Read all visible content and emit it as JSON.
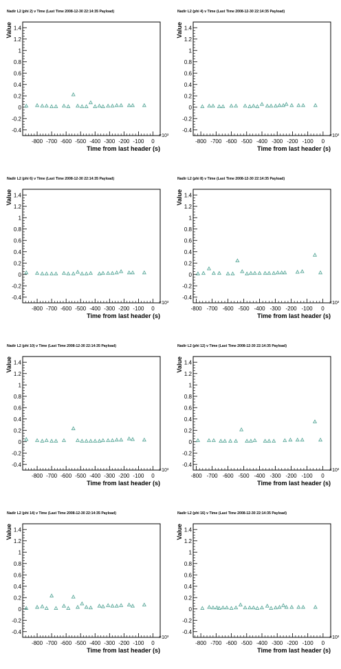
{
  "chart_data": [
    {
      "type": "scatter",
      "title": "Nadir L2 (phi 2) v Time (Last Time 2008-12-30 22:14:35 Payload)",
      "xlabel": "Time from last header (s)",
      "ylabel": "Value",
      "x_multiplier_label": "×10³",
      "xlim": [
        -0.9,
        0.05
      ],
      "ylim": [
        -0.5,
        1.5
      ],
      "x_ticks": [
        -0.8,
        -0.7,
        -0.6,
        -0.5,
        -0.4,
        -0.3,
        -0.2,
        -0.1,
        0
      ],
      "x_tick_labels": [
        "-800",
        "-700",
        "-600",
        "-500",
        "-400",
        "-300",
        "-200",
        "-100",
        "0"
      ],
      "y_ticks": [
        -0.4,
        -0.2,
        0,
        0.2,
        0.4,
        0.6,
        0.8,
        1,
        1.2,
        1.4
      ],
      "y_tick_labels": [
        "-0.4",
        "-0.2",
        "0",
        "0.2",
        "0.4",
        "0.6",
        "0.8",
        "1",
        "1.2",
        "1.4"
      ],
      "marker_color": "#5aa89a",
      "points": [
        [
          -0.875,
          0.02
        ],
        [
          -0.8,
          0.03
        ],
        [
          -0.765,
          0.02
        ],
        [
          -0.735,
          0.02
        ],
        [
          -0.7,
          0.01
        ],
        [
          -0.67,
          0.01
        ],
        [
          -0.615,
          0.02
        ],
        [
          -0.585,
          0.01
        ],
        [
          -0.55,
          0.22
        ],
        [
          -0.52,
          0.02
        ],
        [
          -0.49,
          0.01
        ],
        [
          -0.46,
          0.01
        ],
        [
          -0.43,
          0.08
        ],
        [
          -0.4,
          0.01
        ],
        [
          -0.37,
          0.02
        ],
        [
          -0.345,
          0.01
        ],
        [
          -0.31,
          0.02
        ],
        [
          -0.28,
          0.02
        ],
        [
          -0.25,
          0.03
        ],
        [
          -0.22,
          0.03
        ],
        [
          -0.165,
          0.03
        ],
        [
          -0.14,
          0.03
        ],
        [
          -0.06,
          0.03
        ]
      ]
    },
    {
      "type": "scatter",
      "title": "Nadir L2 (phi 4) v Time (Last Time 2008-12-30 22:14:35 Payload)",
      "xlabel": "Time from last header (s)",
      "ylabel": "Value",
      "x_multiplier_label": "×10³",
      "xlim": [
        -0.85,
        0.05
      ],
      "ylim": [
        -0.5,
        1.5
      ],
      "x_ticks": [
        -0.8,
        -0.7,
        -0.6,
        -0.5,
        -0.4,
        -0.3,
        -0.2,
        -0.1,
        0
      ],
      "x_tick_labels": [
        "-800",
        "-700",
        "-600",
        "-500",
        "-400",
        "-300",
        "-200",
        "-100",
        "0"
      ],
      "y_ticks": [
        -0.4,
        -0.2,
        0,
        0.2,
        0.4,
        0.6,
        0.8,
        1,
        1.2,
        1.4
      ],
      "y_tick_labels": [
        "-0.4",
        "-0.2",
        "0",
        "0.2",
        "0.4",
        "0.6",
        "0.8",
        "1",
        "1.2",
        "1.4"
      ],
      "marker_color": "#5aa89a",
      "points": [
        [
          -0.79,
          0.01
        ],
        [
          -0.745,
          0.02
        ],
        [
          -0.72,
          0.02
        ],
        [
          -0.68,
          0.01
        ],
        [
          -0.655,
          0.01
        ],
        [
          -0.6,
          0.02
        ],
        [
          -0.57,
          0.02
        ],
        [
          -0.51,
          0.02
        ],
        [
          -0.48,
          0.01
        ],
        [
          -0.455,
          0.02
        ],
        [
          -0.43,
          0.01
        ],
        [
          -0.4,
          0.05
        ],
        [
          -0.365,
          0.02
        ],
        [
          -0.34,
          0.02
        ],
        [
          -0.31,
          0.02
        ],
        [
          -0.285,
          0.03
        ],
        [
          -0.26,
          0.03
        ],
        [
          -0.24,
          0.05
        ],
        [
          -0.205,
          0.03
        ],
        [
          -0.16,
          0.03
        ],
        [
          -0.13,
          0.03
        ],
        [
          -0.05,
          0.03
        ]
      ]
    },
    {
      "type": "scatter",
      "title": "Nadir L2 (phi 6) v Time (Last Time 2008-12-30 22:14:35 Payload)",
      "xlabel": "Time from last header (s)",
      "ylabel": "Value",
      "x_multiplier_label": "×10³",
      "xlim": [
        -0.9,
        0.05
      ],
      "ylim": [
        -0.5,
        1.5
      ],
      "x_ticks": [
        -0.8,
        -0.7,
        -0.6,
        -0.5,
        -0.4,
        -0.3,
        -0.2,
        -0.1,
        0
      ],
      "x_tick_labels": [
        "-800",
        "-700",
        "-600",
        "-500",
        "-400",
        "-300",
        "-200",
        "-100",
        "0"
      ],
      "y_ticks": [
        -0.4,
        -0.2,
        0,
        0.2,
        0.4,
        0.6,
        0.8,
        1,
        1.2,
        1.4
      ],
      "y_tick_labels": [
        "-0.4",
        "-0.2",
        "0",
        "0.2",
        "0.4",
        "0.6",
        "0.8",
        "1",
        "1.2",
        "1.4"
      ],
      "marker_color": "#5aa89a",
      "points": [
        [
          -0.875,
          0.03
        ],
        [
          -0.8,
          0.02
        ],
        [
          -0.765,
          0.01
        ],
        [
          -0.735,
          0.01
        ],
        [
          -0.7,
          0.01
        ],
        [
          -0.67,
          0.01
        ],
        [
          -0.615,
          0.02
        ],
        [
          -0.585,
          0.01
        ],
        [
          -0.55,
          0.01
        ],
        [
          -0.52,
          0.04
        ],
        [
          -0.49,
          0.01
        ],
        [
          -0.46,
          0.01
        ],
        [
          -0.43,
          0.02
        ],
        [
          -0.37,
          0.01
        ],
        [
          -0.345,
          0.02
        ],
        [
          -0.31,
          0.02
        ],
        [
          -0.28,
          0.02
        ],
        [
          -0.25,
          0.03
        ],
        [
          -0.22,
          0.05
        ],
        [
          -0.165,
          0.03
        ],
        [
          -0.14,
          0.03
        ],
        [
          -0.06,
          0.03
        ]
      ]
    },
    {
      "type": "scatter",
      "title": "Nadir L2 (phi 8) v Time (Last Time 2008-12-30 22:14:35 Payload)",
      "xlabel": "Time from last header (s)",
      "ylabel": "Value",
      "x_multiplier_label": "×10³",
      "xlim": [
        -0.82,
        0.05
      ],
      "ylim": [
        -0.5,
        1.5
      ],
      "x_ticks": [
        -0.8,
        -0.7,
        -0.6,
        -0.5,
        -0.4,
        -0.3,
        -0.2,
        -0.1,
        0
      ],
      "x_tick_labels": [
        "-800",
        "-700",
        "-600",
        "-500",
        "-400",
        "-300",
        "-200",
        "-100",
        "0"
      ],
      "y_ticks": [
        -0.4,
        -0.2,
        0,
        0.2,
        0.4,
        0.6,
        0.8,
        1,
        1.2,
        1.4
      ],
      "y_tick_labels": [
        "-0.4",
        "-0.2",
        "0",
        "0.2",
        "0.4",
        "0.6",
        "0.8",
        "1",
        "1.2",
        "1.4"
      ],
      "marker_color": "#5aa89a",
      "points": [
        [
          -0.79,
          0.01
        ],
        [
          -0.755,
          0.02
        ],
        [
          -0.72,
          0.1
        ],
        [
          -0.69,
          0.02
        ],
        [
          -0.655,
          0.02
        ],
        [
          -0.6,
          0.01
        ],
        [
          -0.57,
          0.01
        ],
        [
          -0.54,
          0.24
        ],
        [
          -0.51,
          0.05
        ],
        [
          -0.48,
          0.01
        ],
        [
          -0.455,
          0.02
        ],
        [
          -0.43,
          0.02
        ],
        [
          -0.4,
          0.02
        ],
        [
          -0.365,
          0.02
        ],
        [
          -0.34,
          0.02
        ],
        [
          -0.31,
          0.02
        ],
        [
          -0.285,
          0.03
        ],
        [
          -0.26,
          0.03
        ],
        [
          -0.24,
          0.03
        ],
        [
          -0.16,
          0.04
        ],
        [
          -0.13,
          0.05
        ],
        [
          -0.05,
          0.34
        ],
        [
          -0.015,
          0.03
        ]
      ]
    },
    {
      "type": "scatter",
      "title": "Nadir L2 (phi 10) v Time (Last Time 2008-12-30 22:14:35 Payload)",
      "xlabel": "Time from last header (s)",
      "ylabel": "Value",
      "x_multiplier_label": "×10³",
      "xlim": [
        -0.9,
        0.05
      ],
      "ylim": [
        -0.5,
        1.5
      ],
      "x_ticks": [
        -0.8,
        -0.7,
        -0.6,
        -0.5,
        -0.4,
        -0.3,
        -0.2,
        -0.1,
        0
      ],
      "x_tick_labels": [
        "-800",
        "-700",
        "-600",
        "-500",
        "-400",
        "-300",
        "-200",
        "-100",
        "0"
      ],
      "y_ticks": [
        -0.4,
        -0.2,
        0,
        0.2,
        0.4,
        0.6,
        0.8,
        1,
        1.2,
        1.4
      ],
      "y_tick_labels": [
        "-0.4",
        "-0.2",
        "0",
        "0.2",
        "0.4",
        "0.6",
        "0.8",
        "1",
        "1.2",
        "1.4"
      ],
      "marker_color": "#5aa89a",
      "points": [
        [
          -0.875,
          0.04
        ],
        [
          -0.8,
          0.02
        ],
        [
          -0.765,
          0.01
        ],
        [
          -0.735,
          0.02
        ],
        [
          -0.7,
          0.01
        ],
        [
          -0.67,
          0.01
        ],
        [
          -0.615,
          0.02
        ],
        [
          -0.55,
          0.23
        ],
        [
          -0.52,
          0.02
        ],
        [
          -0.49,
          0.01
        ],
        [
          -0.46,
          0.01
        ],
        [
          -0.43,
          0.01
        ],
        [
          -0.4,
          0.01
        ],
        [
          -0.37,
          0.01
        ],
        [
          -0.345,
          0.02
        ],
        [
          -0.31,
          0.02
        ],
        [
          -0.28,
          0.02
        ],
        [
          -0.25,
          0.03
        ],
        [
          -0.22,
          0.03
        ],
        [
          -0.165,
          0.05
        ],
        [
          -0.14,
          0.04
        ],
        [
          -0.06,
          0.03
        ]
      ]
    },
    {
      "type": "scatter",
      "title": "Nadir L2 (phi 12) v Time (Last Time 2008-12-30 22:14:35 Payload)",
      "xlabel": "Time from last header (s)",
      "ylabel": "Value",
      "x_multiplier_label": "×10³",
      "xlim": [
        -0.82,
        0.05
      ],
      "ylim": [
        -0.5,
        1.5
      ],
      "x_ticks": [
        -0.8,
        -0.7,
        -0.6,
        -0.5,
        -0.4,
        -0.3,
        -0.2,
        -0.1,
        0
      ],
      "x_tick_labels": [
        "-800",
        "-700",
        "-600",
        "-500",
        "-400",
        "-300",
        "-200",
        "-100",
        "0"
      ],
      "y_ticks": [
        -0.4,
        -0.2,
        0,
        0.2,
        0.4,
        0.6,
        0.8,
        1,
        1.2,
        1.4
      ],
      "y_tick_labels": [
        "-0.4",
        "-0.2",
        "0",
        "0.2",
        "0.4",
        "0.6",
        "0.8",
        "1",
        "1.2",
        "1.4"
      ],
      "marker_color": "#5aa89a",
      "points": [
        [
          -0.79,
          0.02
        ],
        [
          -0.72,
          0.02
        ],
        [
          -0.69,
          0.02
        ],
        [
          -0.645,
          0.01
        ],
        [
          -0.62,
          0.01
        ],
        [
          -0.585,
          0.01
        ],
        [
          -0.55,
          0.01
        ],
        [
          -0.515,
          0.21
        ],
        [
          -0.48,
          0.01
        ],
        [
          -0.455,
          0.01
        ],
        [
          -0.43,
          0.02
        ],
        [
          -0.365,
          0.01
        ],
        [
          -0.34,
          0.01
        ],
        [
          -0.31,
          0.01
        ],
        [
          -0.24,
          0.02
        ],
        [
          -0.205,
          0.03
        ],
        [
          -0.16,
          0.03
        ],
        [
          -0.13,
          0.03
        ],
        [
          -0.05,
          0.35
        ],
        [
          -0.015,
          0.03
        ]
      ]
    },
    {
      "type": "scatter",
      "title": "Nadir L2 (phi 14) v Time (Last Time 2008-12-30 22:14:35 Payload)",
      "xlabel": "Time from last header (s)",
      "ylabel": "Value",
      "x_multiplier_label": "×10³",
      "xlim": [
        -0.9,
        0.05
      ],
      "ylim": [
        -0.5,
        1.5
      ],
      "x_ticks": [
        -0.8,
        -0.7,
        -0.6,
        -0.5,
        -0.4,
        -0.3,
        -0.2,
        -0.1,
        0
      ],
      "x_tick_labels": [
        "-800",
        "-700",
        "-600",
        "-500",
        "-400",
        "-300",
        "-200",
        "-100",
        "0"
      ],
      "y_ticks": [
        -0.4,
        -0.2,
        0,
        0.2,
        0.4,
        0.6,
        0.8,
        1,
        1.2,
        1.4
      ],
      "y_tick_labels": [
        "-0.4",
        "-0.2",
        "0",
        "0.2",
        "0.4",
        "0.6",
        "0.8",
        "1",
        "1.2",
        "1.4"
      ],
      "marker_color": "#5aa89a",
      "points": [
        [
          -0.875,
          0.01
        ],
        [
          -0.8,
          0.03
        ],
        [
          -0.765,
          0.04
        ],
        [
          -0.735,
          0.01
        ],
        [
          -0.7,
          0.23
        ],
        [
          -0.67,
          0.01
        ],
        [
          -0.615,
          0.05
        ],
        [
          -0.585,
          0.01
        ],
        [
          -0.55,
          0.21
        ],
        [
          -0.52,
          0.03
        ],
        [
          -0.49,
          0.09
        ],
        [
          -0.46,
          0.03
        ],
        [
          -0.43,
          0.02
        ],
        [
          -0.37,
          0.05
        ],
        [
          -0.345,
          0.04
        ],
        [
          -0.31,
          0.06
        ],
        [
          -0.28,
          0.05
        ],
        [
          -0.25,
          0.05
        ],
        [
          -0.22,
          0.06
        ],
        [
          -0.165,
          0.07
        ],
        [
          -0.14,
          0.05
        ],
        [
          -0.06,
          0.07
        ]
      ]
    },
    {
      "type": "scatter",
      "title": "Nadir L2 (phi 16) v Time (Last Time 2008-12-30 22:14:35 Payload)",
      "xlabel": "Time from last header (s)",
      "ylabel": "Value",
      "x_multiplier_label": "×10³",
      "xlim": [
        -0.85,
        0.05
      ],
      "ylim": [
        -0.5,
        1.5
      ],
      "x_ticks": [
        -0.8,
        -0.7,
        -0.6,
        -0.5,
        -0.4,
        -0.3,
        -0.2,
        -0.1,
        0
      ],
      "x_tick_labels": [
        "-800",
        "-700",
        "-600",
        "-500",
        "-400",
        "-300",
        "-200",
        "-100",
        "0"
      ],
      "y_ticks": [
        -0.4,
        -0.2,
        0,
        0.2,
        0.4,
        0.6,
        0.8,
        1,
        1.2,
        1.4
      ],
      "y_tick_labels": [
        "-0.4",
        "-0.2",
        "0",
        "0.2",
        "0.4",
        "0.6",
        "0.8",
        "1",
        "1.2",
        "1.4"
      ],
      "marker_color": "#5aa89a",
      "points": [
        [
          -0.79,
          0.01
        ],
        [
          -0.745,
          0.03
        ],
        [
          -0.72,
          0.02
        ],
        [
          -0.695,
          0.02
        ],
        [
          -0.68,
          0.01
        ],
        [
          -0.655,
          0.02
        ],
        [
          -0.63,
          0.02
        ],
        [
          -0.6,
          0.01
        ],
        [
          -0.57,
          0.02
        ],
        [
          -0.54,
          0.07
        ],
        [
          -0.51,
          0.02
        ],
        [
          -0.48,
          0.02
        ],
        [
          -0.455,
          0.02
        ],
        [
          -0.43,
          0.01
        ],
        [
          -0.4,
          0.02
        ],
        [
          -0.365,
          0.05
        ],
        [
          -0.34,
          0.01
        ],
        [
          -0.31,
          0.02
        ],
        [
          -0.285,
          0.03
        ],
        [
          -0.26,
          0.06
        ],
        [
          -0.24,
          0.03
        ],
        [
          -0.205,
          0.03
        ],
        [
          -0.16,
          0.03
        ],
        [
          -0.13,
          0.03
        ],
        [
          -0.05,
          0.03
        ]
      ]
    }
  ]
}
